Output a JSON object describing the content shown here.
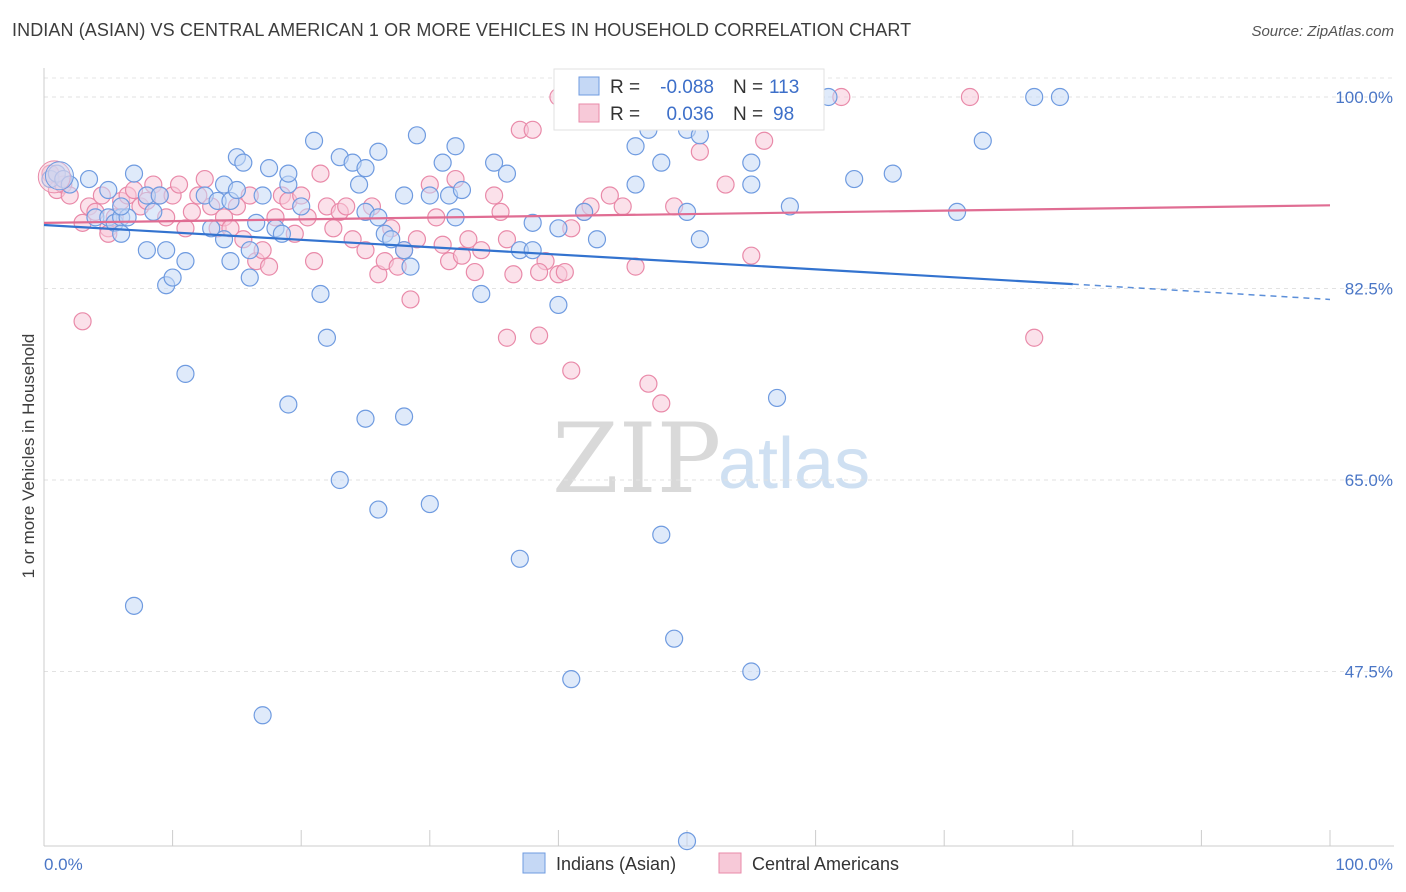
{
  "title": "INDIAN (ASIAN) VS CENTRAL AMERICAN 1 OR MORE VEHICLES IN HOUSEHOLD CORRELATION CHART",
  "source": "Source: ZipAtlas.com",
  "watermark": {
    "zip": "ZIP",
    "atlas": "atlas"
  },
  "colors": {
    "indian": "#6f9be0",
    "indian_fill": "#c5d8f5",
    "central": "#e98aa9",
    "central_fill": "#f7c9d8",
    "blue_line": "#3373cf",
    "pink_line": "#e06d93",
    "tick": "#4a76c6"
  },
  "legend_top": {
    "rows": [
      {
        "r_label": "R =",
        "r_value": "-0.088",
        "n_label": "N =",
        "n_value": "113"
      },
      {
        "r_label": "R =",
        "r_value": "0.036",
        "n_label": "N =",
        "n_value": "98"
      }
    ]
  },
  "legend_bottom": {
    "items": [
      "Indians (Asian)",
      "Central Americans"
    ]
  },
  "chart_data": {
    "type": "scatter",
    "title": "INDIAN (ASIAN) VS CENTRAL AMERICAN 1 OR MORE VEHICLES IN HOUSEHOLD CORRELATION CHART",
    "xlabel": "",
    "ylabel": "1 or more Vehicles in Household",
    "xlim": [
      0,
      100
    ],
    "ylim": [
      30,
      102
    ],
    "x_tick_labels": [
      "0.0%",
      "100.0%"
    ],
    "y_ticks": [
      100.0,
      82.5,
      65.0,
      47.5
    ],
    "y_tick_labels": [
      "100.0%",
      "82.5%",
      "65.0%",
      "47.5%"
    ],
    "grid": "horizontal dashed",
    "legend": "bottom-center",
    "series": [
      {
        "name": "Indians (Asian)",
        "r": -0.088,
        "n": 113,
        "trend": {
          "x0": 0,
          "y0": 88.3,
          "x1": 80,
          "y1": 82.9,
          "dashed_to": 100,
          "y_end": 81.5
        },
        "points": [
          [
            0.5,
            92.5
          ],
          [
            1,
            93
          ],
          [
            1.5,
            92.5
          ],
          [
            2,
            92
          ],
          [
            3.5,
            92.5
          ],
          [
            4,
            89
          ],
          [
            5,
            91.5
          ],
          [
            5,
            89
          ],
          [
            5.5,
            88.5
          ],
          [
            6,
            89
          ],
          [
            6,
            87.5
          ],
          [
            6.5,
            89
          ],
          [
            6,
            90
          ],
          [
            8,
            86
          ],
          [
            7,
            93
          ],
          [
            8,
            91
          ],
          [
            9.5,
            82.8
          ],
          [
            10,
            83.5
          ],
          [
            8.5,
            89.5
          ],
          [
            9,
            91
          ],
          [
            9.5,
            86
          ],
          [
            11,
            85
          ],
          [
            12.5,
            91
          ],
          [
            13,
            88
          ],
          [
            13.5,
            90.5
          ],
          [
            14,
            87
          ],
          [
            14.5,
            85
          ],
          [
            14,
            92
          ],
          [
            14.5,
            90.5
          ],
          [
            15,
            94.5
          ],
          [
            15,
            91.5
          ],
          [
            16,
            86
          ],
          [
            16,
            83.5
          ],
          [
            16.5,
            88.5
          ],
          [
            15.5,
            94
          ],
          [
            17,
            91
          ],
          [
            17.5,
            93.5
          ],
          [
            18,
            88
          ],
          [
            18.5,
            87.5
          ],
          [
            19,
            92
          ],
          [
            20,
            90
          ],
          [
            19,
            93
          ],
          [
            21,
            96
          ],
          [
            21.5,
            82
          ],
          [
            22,
            78
          ],
          [
            23,
            94.5
          ],
          [
            24,
            94
          ],
          [
            24.5,
            92
          ],
          [
            25,
            93.5
          ],
          [
            26,
            95
          ],
          [
            25,
            89.5
          ],
          [
            26,
            89
          ],
          [
            26.5,
            87.5
          ],
          [
            27,
            87
          ],
          [
            28,
            86
          ],
          [
            28.5,
            84.5
          ],
          [
            28,
            91
          ],
          [
            30,
            91
          ],
          [
            29,
            96.5
          ],
          [
            31,
            94
          ],
          [
            32,
            95.5
          ],
          [
            31.5,
            91
          ],
          [
            32,
            89
          ],
          [
            32.5,
            91.5
          ],
          [
            34,
            82
          ],
          [
            35,
            94
          ],
          [
            36,
            93
          ],
          [
            37,
            86
          ],
          [
            38,
            88.5
          ],
          [
            38,
            86
          ],
          [
            40,
            88
          ],
          [
            40,
            81
          ],
          [
            42,
            89.5
          ],
          [
            43,
            87
          ],
          [
            46,
            95.5
          ],
          [
            46,
            92
          ],
          [
            47,
            97
          ],
          [
            48,
            98
          ],
          [
            48,
            94
          ],
          [
            50,
            97
          ],
          [
            50,
            89.5
          ],
          [
            51,
            96.5
          ],
          [
            51,
            87
          ],
          [
            55,
            94
          ],
          [
            55,
            92
          ],
          [
            58,
            90
          ],
          [
            59,
            98
          ],
          [
            60,
            100
          ],
          [
            61,
            100
          ],
          [
            63,
            92.5
          ],
          [
            66,
            93
          ],
          [
            11,
            74.7
          ],
          [
            19,
            71.9
          ],
          [
            23,
            65
          ],
          [
            25,
            70.6
          ],
          [
            26,
            62.3
          ],
          [
            28,
            70.8
          ],
          [
            30,
            62.8
          ],
          [
            37,
            57.8
          ],
          [
            41,
            46.8
          ],
          [
            48,
            60
          ],
          [
            49,
            50.5
          ],
          [
            50,
            32
          ],
          [
            55,
            47.5
          ],
          [
            7,
            53.5
          ],
          [
            17,
            43.5
          ],
          [
            57,
            72.5
          ],
          [
            71,
            89.5
          ],
          [
            77,
            100
          ],
          [
            79,
            100
          ],
          [
            73,
            96
          ],
          [
            44,
            100
          ],
          [
            56,
            101
          ]
        ]
      },
      {
        "name": "Central Americans",
        "r": 0.036,
        "n": 98,
        "trend": {
          "x0": 0,
          "y0": 88.5,
          "x1": 100,
          "y1": 90.1
        },
        "points": [
          [
            0.5,
            93
          ],
          [
            1,
            91.5
          ],
          [
            1.5,
            92
          ],
          [
            2,
            91
          ],
          [
            3,
            88.5
          ],
          [
            3.5,
            90
          ],
          [
            4,
            89.5
          ],
          [
            4.5,
            91
          ],
          [
            5,
            88
          ],
          [
            5.5,
            89
          ],
          [
            6,
            90.5
          ],
          [
            6.5,
            91
          ],
          [
            7,
            91.5
          ],
          [
            7.5,
            90
          ],
          [
            8,
            90.5
          ],
          [
            8.5,
            92
          ],
          [
            9,
            91
          ],
          [
            9.5,
            89
          ],
          [
            10,
            91
          ],
          [
            10.5,
            92
          ],
          [
            11,
            88
          ],
          [
            11.5,
            89.5
          ],
          [
            12,
            91
          ],
          [
            12.5,
            92.5
          ],
          [
            13,
            90
          ],
          [
            13.5,
            88
          ],
          [
            14,
            89
          ],
          [
            14.5,
            88
          ],
          [
            15,
            90
          ],
          [
            15.5,
            87
          ],
          [
            16,
            91
          ],
          [
            16.5,
            85
          ],
          [
            17,
            86
          ],
          [
            17.5,
            84.5
          ],
          [
            18,
            89
          ],
          [
            18.5,
            91
          ],
          [
            19,
            90.5
          ],
          [
            19.5,
            87.5
          ],
          [
            20,
            91
          ],
          [
            20.5,
            89
          ],
          [
            21,
            85
          ],
          [
            21.5,
            93
          ],
          [
            22,
            90
          ],
          [
            22.5,
            88
          ],
          [
            23,
            89.5
          ],
          [
            23.5,
            90
          ],
          [
            24,
            87
          ],
          [
            25,
            86
          ],
          [
            25.5,
            90
          ],
          [
            26,
            83.8
          ],
          [
            26.5,
            85
          ],
          [
            27,
            88
          ],
          [
            27.5,
            84.5
          ],
          [
            28,
            86
          ],
          [
            28.5,
            81.5
          ],
          [
            29,
            87
          ],
          [
            30,
            92
          ],
          [
            30.5,
            89
          ],
          [
            31,
            86.5
          ],
          [
            31.5,
            85
          ],
          [
            32,
            92.5
          ],
          [
            32.5,
            85.5
          ],
          [
            33,
            87
          ],
          [
            33.5,
            84
          ],
          [
            34,
            86
          ],
          [
            35,
            91
          ],
          [
            35.5,
            89.5
          ],
          [
            36,
            87
          ],
          [
            36.5,
            83.8
          ],
          [
            37,
            97
          ],
          [
            38,
            97
          ],
          [
            38.5,
            78.2
          ],
          [
            39,
            85
          ],
          [
            40,
            83.8
          ],
          [
            40.5,
            84
          ],
          [
            41,
            75
          ],
          [
            42,
            89.5
          ],
          [
            42.5,
            90
          ],
          [
            44,
            91
          ],
          [
            45,
            90
          ],
          [
            46,
            84.5
          ],
          [
            47,
            73.8
          ],
          [
            48,
            72
          ],
          [
            49,
            90
          ],
          [
            50,
            101
          ],
          [
            51,
            95
          ],
          [
            53,
            92
          ],
          [
            55,
            85.5
          ],
          [
            56,
            96
          ],
          [
            62,
            100
          ],
          [
            72,
            100
          ],
          [
            77,
            78
          ],
          [
            3,
            79.5
          ],
          [
            5,
            87.5
          ],
          [
            36,
            78
          ],
          [
            38.5,
            84
          ],
          [
            40,
            100
          ],
          [
            41,
            88
          ]
        ]
      }
    ]
  }
}
